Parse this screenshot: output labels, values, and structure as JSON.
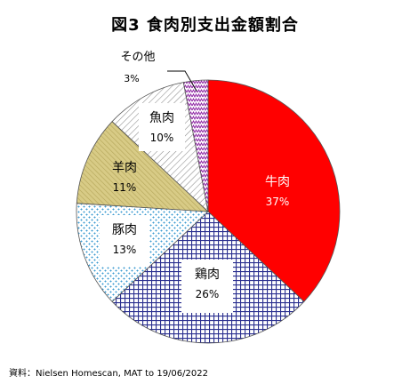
{
  "chart_data": {
    "type": "pie",
    "title": "図3 食肉別支出金額割合",
    "slices": [
      {
        "label": "牛肉",
        "value": 37,
        "pct_label": "37%",
        "color": "#ff0000",
        "pattern": "solid"
      },
      {
        "label": "鶏肉",
        "value": 26,
        "pct_label": "26%",
        "color": "#2a2f8f",
        "pattern": "grid"
      },
      {
        "label": "豚肉",
        "value": 13,
        "pct_label": "13%",
        "color": "#3a9ad0",
        "pattern": "dots"
      },
      {
        "label": "羊肉",
        "value": 11,
        "pct_label": "11%",
        "color": "#d8cb86",
        "pattern": "diag-fill"
      },
      {
        "label": "魚肉",
        "value": 10,
        "pct_label": "10%",
        "color": "#8a8a8a",
        "pattern": "hatch"
      },
      {
        "label": "その他",
        "value": 3,
        "pct_label": "3%",
        "color": "#8a1aa0",
        "pattern": "zigzag"
      }
    ],
    "source": "資料：Nielsen Homescan, MAT to 19/06/2022"
  }
}
